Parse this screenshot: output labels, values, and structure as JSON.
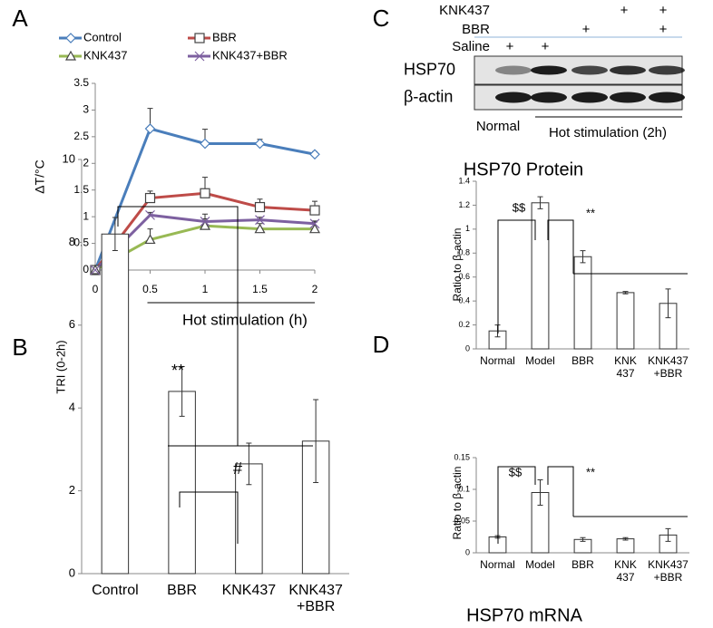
{
  "chart_data": [
    {
      "type": "line",
      "panel_label": "A",
      "x_label": "Hot stimulation (h)",
      "y_label": "ΔT/°C",
      "x": [
        0,
        0.5,
        1,
        1.5,
        2
      ],
      "xlim": [
        0,
        2
      ],
      "xticks": [
        0,
        0.5,
        1,
        1.5,
        2
      ],
      "ylim": [
        0,
        3.5
      ],
      "yticks": [
        0,
        0.5,
        1,
        1.5,
        2,
        2.5,
        3,
        3.5
      ],
      "series": [
        {
          "name": "Control",
          "color": "#4a7ebb",
          "marker": "diamond",
          "values": [
            0,
            2.65,
            2.37,
            2.37,
            2.17
          ],
          "errors": [
            0,
            0.38,
            0.27,
            0.08,
            0.05
          ]
        },
        {
          "name": "BBR",
          "color": "#be4b48",
          "marker": "square",
          "values": [
            0,
            1.35,
            1.44,
            1.18,
            1.12
          ],
          "errors": [
            0,
            0.13,
            0.3,
            0.15,
            0.17
          ]
        },
        {
          "name": "KNK437",
          "color": "#98b954",
          "marker": "triangle",
          "values": [
            0,
            0.57,
            0.83,
            0.77,
            0.77
          ],
          "errors": [
            0,
            0.2,
            0.22,
            0.1,
            0.13
          ]
        },
        {
          "name": "KNK437+BBR",
          "color": "#7d60a0",
          "marker": "cross",
          "values": [
            0,
            1.03,
            0.91,
            0.94,
            0.87
          ],
          "errors": [
            0,
            0.05,
            0.05,
            0.05,
            0.05
          ]
        }
      ]
    },
    {
      "type": "bar",
      "panel_label": "B",
      "y_label": "TRI (0-2h)",
      "categories": [
        "Control",
        "BBR",
        "KNK437",
        "KNK437\n+BBR"
      ],
      "values": [
        8.2,
        4.4,
        2.65,
        3.2
      ],
      "errors": [
        0.4,
        0.6,
        0.5,
        1.0
      ],
      "ylim": [
        0,
        10
      ],
      "yticks": [
        0,
        2,
        4,
        6,
        8,
        10
      ],
      "annotations": [
        "**",
        "#"
      ]
    },
    {
      "type": "bar",
      "panel_label": "C",
      "title": "HSP70 Protein",
      "y_label": "Ratio to β-actin",
      "categories": [
        "Normal",
        "Model",
        "BBR",
        "KNK\n437",
        "KNK437\n+BBR"
      ],
      "values": [
        0.15,
        1.22,
        0.77,
        0.47,
        0.38
      ],
      "errors": [
        0.05,
        0.05,
        0.05,
        0.01,
        0.12
      ],
      "ylim": [
        0,
        1.4
      ],
      "yticks": [
        0,
        0.2,
        0.4,
        0.6,
        0.8,
        1,
        1.2,
        1.4
      ],
      "annotations": [
        "$$",
        "**"
      ]
    },
    {
      "type": "bar",
      "panel_label": "D",
      "title": "HSP70 mRNA",
      "y_label": "Ratio to β-actin",
      "categories": [
        "Normal",
        "Model",
        "BBR",
        "KNK\n437",
        "KNK437\n+BBR"
      ],
      "values": [
        0.025,
        0.095,
        0.021,
        0.022,
        0.028
      ],
      "errors": [
        0.002,
        0.02,
        0.003,
        0.002,
        0.01
      ],
      "ylim": [
        0,
        0.15
      ],
      "yticks": [
        0,
        0.05,
        0.1,
        0.15
      ],
      "annotations": [
        "$$",
        "**"
      ]
    }
  ],
  "blot": {
    "treatments": [
      {
        "name": "KNK437",
        "marks": [
          null,
          null,
          null,
          "+",
          "+"
        ]
      },
      {
        "name": "BBR",
        "marks": [
          null,
          null,
          "+",
          null,
          "+"
        ]
      },
      {
        "name": "Saline",
        "marks": [
          "+",
          "+",
          null,
          null,
          null
        ]
      }
    ],
    "rows": [
      "HSP70",
      "β-actin"
    ],
    "normal_label": "Normal",
    "group_label": "Hot stimulation (2h)"
  }
}
